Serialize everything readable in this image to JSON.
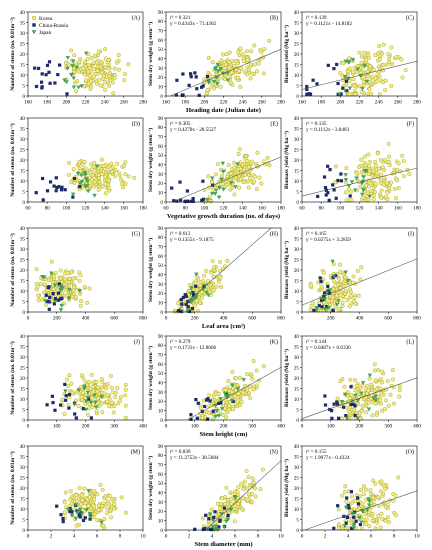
{
  "legend": {
    "items": [
      {
        "label": "Korea",
        "marker": "circle",
        "fill": "#f5f07a",
        "stroke": "#8c8a2a"
      },
      {
        "label": "China-Russia",
        "marker": "square",
        "fill": "#1c2a6e",
        "stroke": "#1c2a6e"
      },
      {
        "label": "Japan",
        "marker": "triangle",
        "fill": "#3fae5a",
        "stroke": "#2a7a3c"
      }
    ]
  },
  "rows": [
    {
      "xlabel": "Heading date (Julian date)"
    },
    {
      "xlabel": "Vegetative growth duration (no. of days)"
    },
    {
      "xlabel": "Leaf area (cm²)"
    },
    {
      "xlabel": "Stem height (cm)"
    },
    {
      "xlabel": "Stem diameter (mm)"
    }
  ],
  "columns": [
    {
      "ylabel": "Number of stems (no. 0.01m⁻²)"
    },
    {
      "ylabel": "Stem dry weight (g stem⁻¹)"
    },
    {
      "ylabel": "Biomass yield (Mg ha⁻¹)"
    }
  ],
  "chart_data": [
    {
      "panel": "(A)",
      "type": "scatter",
      "xlim": [
        160,
        280
      ],
      "ylim": [
        0,
        40
      ],
      "xticks": [
        160,
        180,
        200,
        220,
        240,
        260,
        280
      ],
      "yticks": [
        0,
        5,
        10,
        15,
        20,
        25,
        30,
        35,
        40
      ],
      "equation": "",
      "r2": "",
      "fit": null
    },
    {
      "panel": "(B)",
      "type": "scatter",
      "xlim": [
        160,
        280
      ],
      "ylim": [
        0,
        90
      ],
      "xticks": [
        160,
        180,
        200,
        220,
        240,
        260,
        280
      ],
      "yticks": [
        0,
        10,
        20,
        30,
        40,
        50,
        60,
        70,
        80,
        90
      ],
      "equation": "y = 0.4343x - 71.4302",
      "r2": "r² = 0.321",
      "fit": {
        "slope": 0.4343,
        "intercept": -71.4302
      }
    },
    {
      "panel": "(C)",
      "type": "scatter",
      "xlim": [
        160,
        280
      ],
      "ylim": [
        0,
        40
      ],
      "xticks": [
        160,
        180,
        200,
        220,
        240,
        260,
        280
      ],
      "yticks": [
        0,
        5,
        10,
        15,
        20,
        25,
        30,
        35,
        40
      ],
      "equation": "y = 0.1121x - 14.8182",
      "r2": "r² = 0.139",
      "fit": {
        "slope": 0.1121,
        "intercept": -14.8182
      }
    },
    {
      "panel": "(D)",
      "type": "scatter",
      "xlim": [
        60,
        180
      ],
      "ylim": [
        0,
        40
      ],
      "xticks": [
        60,
        80,
        100,
        120,
        140,
        160,
        180
      ],
      "yticks": [
        0,
        5,
        10,
        15,
        20,
        25,
        30,
        35,
        40
      ],
      "equation": "",
      "r2": "",
      "fit": null
    },
    {
      "panel": "(E)",
      "type": "scatter",
      "xlim": [
        60,
        180
      ],
      "ylim": [
        0,
        90
      ],
      "xticks": [
        60,
        80,
        100,
        120,
        140,
        160,
        180
      ],
      "yticks": [
        0,
        10,
        20,
        30,
        40,
        50,
        60,
        70,
        80,
        90
      ],
      "equation": "y = 0.4270x - 28.5527",
      "r2": "r² = 0.305",
      "fit": {
        "slope": 0.427,
        "intercept": -28.5527
      }
    },
    {
      "panel": "(F)",
      "type": "scatter",
      "xlim": [
        60,
        180
      ],
      "ylim": [
        0,
        40
      ],
      "xticks": [
        60,
        80,
        100,
        120,
        140,
        160,
        180
      ],
      "yticks": [
        0,
        5,
        10,
        15,
        20,
        25,
        30,
        35,
        40
      ],
      "equation": "y = 0.1112x - 3.8483",
      "r2": "r² = 0.135",
      "fit": {
        "slope": 0.1112,
        "intercept": -3.8483
      }
    },
    {
      "panel": "(G)",
      "type": "scatter",
      "xlim": [
        0,
        800
      ],
      "ylim": [
        0,
        40
      ],
      "xticks": [
        0,
        200,
        400,
        600,
        800
      ],
      "yticks": [
        0,
        5,
        10,
        15,
        20,
        25,
        30,
        35,
        40
      ],
      "equation": "",
      "r2": "",
      "fit": null
    },
    {
      "panel": "(H)",
      "type": "scatter",
      "xlim": [
        0,
        800
      ],
      "ylim": [
        0,
        90
      ],
      "xticks": [
        0,
        200,
        400,
        600,
        800
      ],
      "yticks": [
        0,
        10,
        20,
        30,
        40,
        50,
        60,
        70,
        80,
        90
      ],
      "equation": "y = 0.1355x - 9.1875",
      "r2": "r² = 0.613",
      "fit": {
        "slope": 0.1355,
        "intercept": -9.1875
      }
    },
    {
      "panel": "(I)",
      "type": "scatter",
      "xlim": [
        0,
        800
      ],
      "ylim": [
        0,
        40
      ],
      "xticks": [
        0,
        200,
        400,
        600,
        800
      ],
      "yticks": [
        0,
        5,
        10,
        15,
        20,
        25,
        30,
        35,
        40
      ],
      "equation": "y = 0.0275x + 3.2859",
      "r2": "r² = 0.165",
      "fit": {
        "slope": 0.0275,
        "intercept": 3.2859
      }
    },
    {
      "panel": "(J)",
      "type": "scatter",
      "xlim": [
        0,
        400
      ],
      "ylim": [
        0,
        40
      ],
      "xticks": [
        0,
        100,
        200,
        300,
        400
      ],
      "yticks": [
        0,
        5,
        10,
        15,
        20,
        25,
        30,
        35,
        40
      ],
      "equation": "",
      "r2": "",
      "fit": null
    },
    {
      "panel": "(K)",
      "type": "scatter",
      "xlim": [
        0,
        400
      ],
      "ylim": [
        0,
        90
      ],
      "xticks": [
        0,
        100,
        200,
        300,
        400
      ],
      "yticks": [
        0,
        10,
        20,
        30,
        40,
        50,
        60,
        70,
        80,
        90
      ],
      "equation": "y = 0.1731x - 12.8066",
      "r2": "r² = 0.279",
      "fit": {
        "slope": 0.1731,
        "intercept": -12.8066
      }
    },
    {
      "panel": "(L)",
      "type": "scatter",
      "xlim": [
        0,
        400
      ],
      "ylim": [
        0,
        40
      ],
      "xticks": [
        0,
        100,
        200,
        300,
        400
      ],
      "yticks": [
        0,
        5,
        10,
        15,
        20,
        25,
        30,
        35,
        40
      ],
      "equation": "y = 0.0487x + 0.6330",
      "r2": "r² = 0.144",
      "fit": {
        "slope": 0.0487,
        "intercept": 0.633
      }
    },
    {
      "panel": "(M)",
      "type": "scatter",
      "xlim": [
        0,
        10
      ],
      "ylim": [
        0,
        40
      ],
      "xticks": [
        0,
        2,
        4,
        6,
        8,
        10
      ],
      "yticks": [
        0,
        5,
        10,
        15,
        20,
        25,
        30,
        35,
        40
      ],
      "equation": "",
      "r2": "",
      "fit": null
    },
    {
      "panel": "(N)",
      "type": "scatter",
      "xlim": [
        0,
        10
      ],
      "ylim": [
        0,
        90
      ],
      "xticks": [
        0,
        2,
        4,
        6,
        8,
        10
      ],
      "yticks": [
        0,
        10,
        20,
        30,
        40,
        50,
        60,
        70,
        80,
        90
      ],
      "equation": "y = 11.2753x - 38.5684",
      "r2": "r² = 0.830",
      "fit": {
        "slope": 11.2753,
        "intercept": -38.5684
      }
    },
    {
      "panel": "(O)",
      "type": "scatter",
      "xlim": [
        0,
        10
      ],
      "ylim": [
        0,
        40
      ],
      "xticks": [
        0,
        2,
        4,
        6,
        8,
        10
      ],
      "yticks": [
        0,
        5,
        10,
        15,
        20,
        25,
        30,
        35,
        40
      ],
      "equation": "y = 1.9077x - 0.4324",
      "r2": "r² = 0.155",
      "fit": {
        "slope": 1.9077,
        "intercept": -0.4324
      }
    }
  ]
}
